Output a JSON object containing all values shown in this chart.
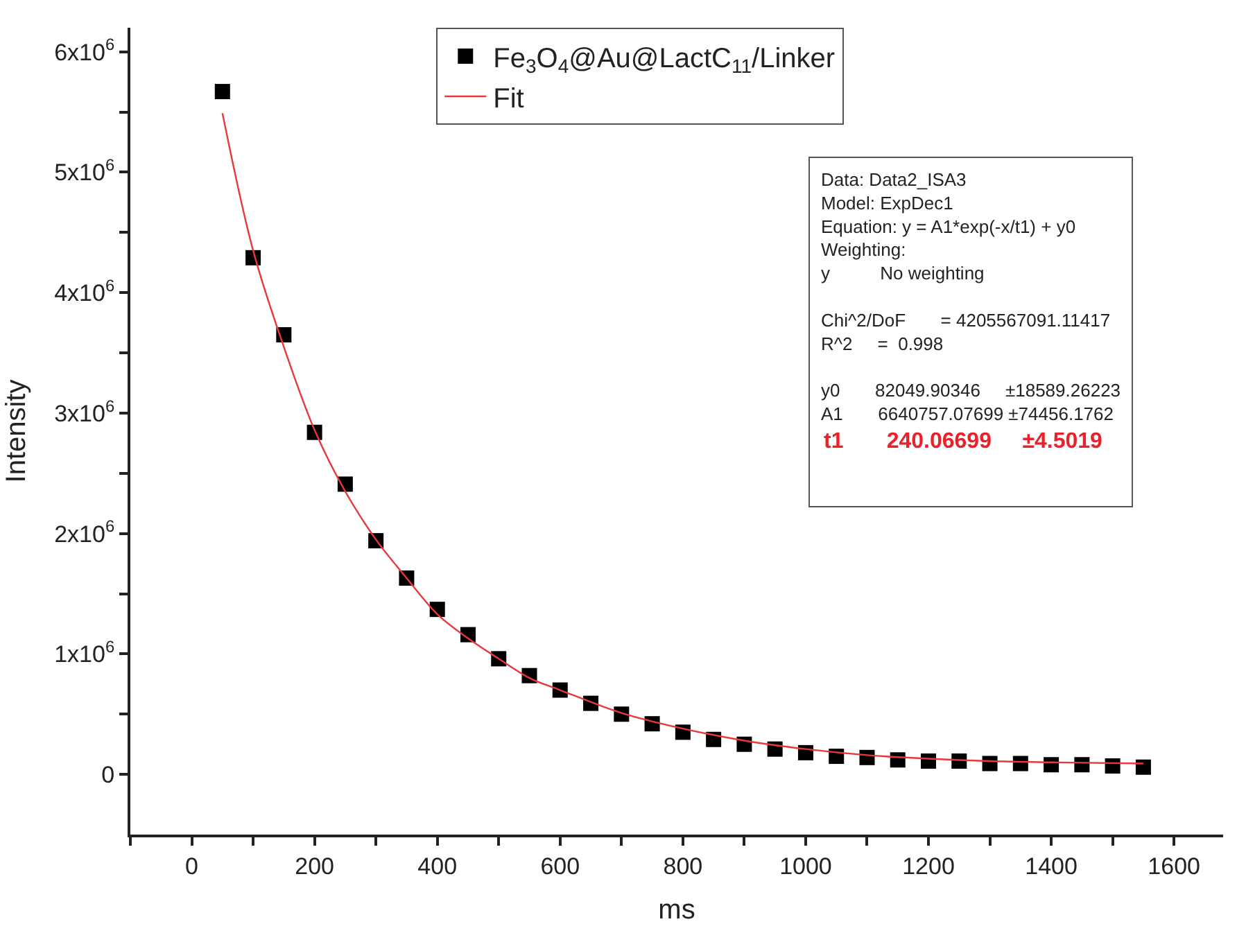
{
  "chart_data": {
    "type": "scatter",
    "xlabel": "ms",
    "ylabel": "Intensity",
    "xlim": [
      -100,
      1680
    ],
    "ylim": [
      -500000,
      6200000
    ],
    "xticks": [
      {
        "value": -100,
        "label": null
      },
      0,
      {
        "value": 100,
        "label": null
      },
      200,
      {
        "value": 300,
        "label": null
      },
      400,
      {
        "value": 500,
        "label": null
      },
      600,
      {
        "value": 700,
        "label": null
      },
      800,
      {
        "value": 900,
        "label": null
      },
      1000,
      {
        "value": 1100,
        "label": null
      },
      1200,
      {
        "value": 1300,
        "label": null
      },
      1400,
      {
        "value": 1500,
        "label": null
      },
      1600
    ],
    "yticks": [
      0,
      {
        "value": 500000,
        "label": null
      },
      {
        "value": 1000000,
        "label": "1x10$^{6}$"
      },
      {
        "value": 1500000,
        "label": null
      },
      {
        "value": 2000000,
        "label": "2x10$^{6}$"
      },
      {
        "value": 2500000,
        "label": null
      },
      {
        "value": 3000000,
        "label": "3x10$^{6}$"
      },
      {
        "value": 3500000,
        "label": null
      },
      {
        "value": 4000000,
        "label": "4x10$^{6}$"
      },
      {
        "value": 4500000,
        "label": null
      },
      {
        "value": 5000000,
        "label": "5x10$^{6}$"
      },
      {
        "value": 5500000,
        "label": null
      },
      {
        "value": 6000000,
        "label": "6x10$^{6}$"
      }
    ],
    "legend": "top",
    "series": [
      {
        "name": "Fe$_{3}$O$_{4}$@Au@LactC$_{11}$/Linker",
        "marker": "square",
        "color": "#000000",
        "x": [
          50,
          100,
          150,
          200,
          250,
          300,
          350,
          400,
          450,
          500,
          550,
          600,
          650,
          700,
          750,
          800,
          850,
          900,
          950,
          1000,
          1050,
          1100,
          1150,
          1200,
          1250,
          1300,
          1350,
          1400,
          1450,
          1500,
          1550
        ],
        "values": [
          5670000,
          4290000,
          3650000,
          2840000,
          2410000,
          1940000,
          1630000,
          1370000,
          1160000,
          960000,
          820000,
          700000,
          590000,
          500000,
          420000,
          350000,
          290000,
          250000,
          210000,
          180000,
          150000,
          140000,
          120000,
          110000,
          110000,
          90000,
          90000,
          80000,
          80000,
          70000,
          60000
        ]
      },
      {
        "name": "Fit",
        "type": "line",
        "marker": "none",
        "line_style": "solid",
        "color": "#e8383d",
        "x": [
          50,
          100,
          150,
          200,
          250,
          300,
          350,
          400,
          450,
          500,
          550,
          600,
          700,
          800,
          900,
          1000,
          1100,
          1200,
          1300,
          1400,
          1550
        ],
        "values": [
          5490000,
          4350000,
          3550000,
          2860000,
          2350000,
          1950000,
          1630000,
          1330000,
          1130000,
          960000,
          800000,
          700000,
          510000,
          380000,
          280000,
          210000,
          160000,
          130000,
          110000,
          100000,
          90000
        ]
      }
    ],
    "annotations": [
      "Data: Data2_ISA3\nModel: ExpDec1\nEquation: y = A1*exp(-x/t1) + y0\nWeighting:\ny          No weighting\n\nChi^2/DoF       = 4205567091.11417\nR^2     =  0.998\n\ny0       82049.90346     ±18589.26223\nA1       6640757.07699 ±74456.1762",
      "t1       240.06699     ±4.5019"
    ]
  }
}
